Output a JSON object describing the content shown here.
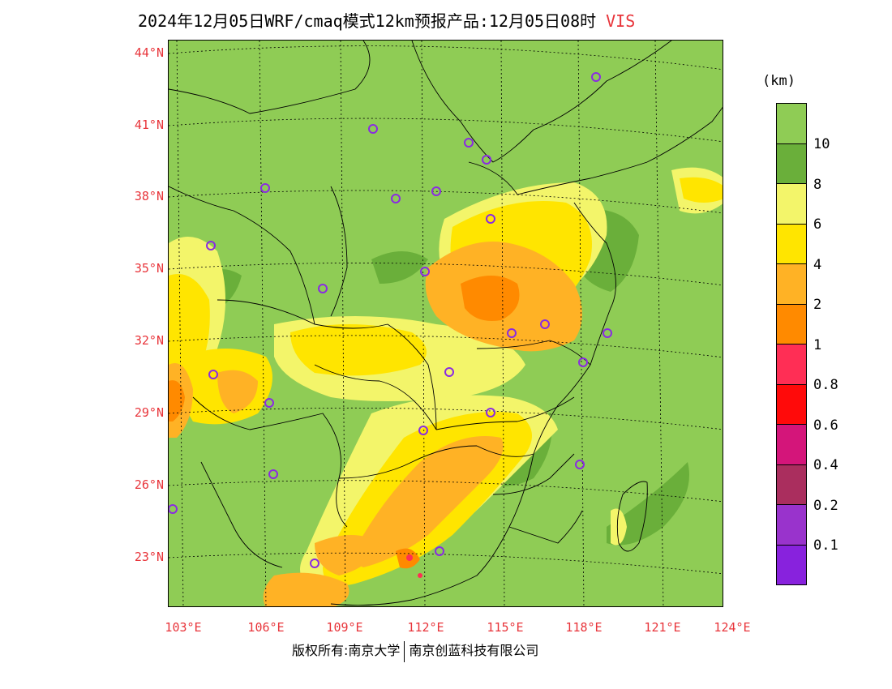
{
  "title": {
    "main": "2024年12月05日WRF/cmaq模式12km预报产品:12月05日08时",
    "variable": "VIS"
  },
  "axes": {
    "lat_labels": [
      "44°N",
      "41°N",
      "38°N",
      "35°N",
      "32°N",
      "29°N",
      "26°N",
      "23°N"
    ],
    "lon_labels": [
      "103°E",
      "106°E",
      "109°E",
      "112°E",
      "115°E",
      "118°E",
      "121°E",
      "124°E"
    ]
  },
  "legend": {
    "unit": "(km)",
    "labels": [
      "10",
      "8",
      "6",
      "4",
      "2",
      "1",
      "0.8",
      "0.6",
      "0.4",
      "0.2",
      "0.1"
    ],
    "colors": [
      "#8fcc55",
      "#6aaf3a",
      "#f3f56a",
      "#ffe500",
      "#ffb225",
      "#ff8a00",
      "#ff2e55",
      "#ff0a0a",
      "#d4157a",
      "#aa2e5e",
      "#9933cc",
      "#8822dd"
    ]
  },
  "footer": {
    "copyright": "版权所有:南京大学",
    "company": "南京创蓝科技有限公司"
  },
  "stations": [
    {
      "name": "station-1"
    },
    {
      "name": "station-2"
    },
    {
      "name": "station-3"
    },
    {
      "name": "station-4"
    },
    {
      "name": "station-5"
    },
    {
      "name": "station-6"
    },
    {
      "name": "station-7"
    },
    {
      "name": "station-8"
    },
    {
      "name": "station-9"
    },
    {
      "name": "station-10"
    },
    {
      "name": "station-11"
    },
    {
      "name": "station-12"
    },
    {
      "name": "station-13"
    },
    {
      "name": "station-14"
    },
    {
      "name": "station-15"
    },
    {
      "name": "station-16"
    },
    {
      "name": "station-17"
    },
    {
      "name": "station-18"
    },
    {
      "name": "station-19"
    },
    {
      "name": "station-20"
    },
    {
      "name": "station-21"
    },
    {
      "name": "station-22"
    },
    {
      "name": "station-23"
    },
    {
      "name": "station-24"
    },
    {
      "name": "station-25"
    }
  ]
}
